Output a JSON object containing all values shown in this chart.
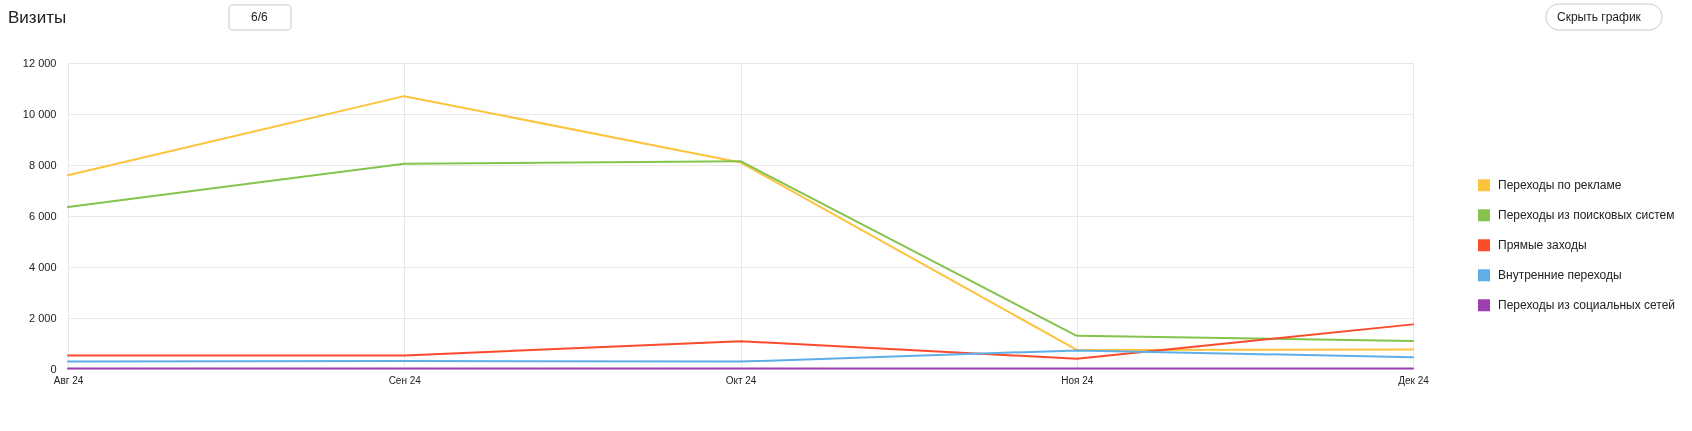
{
  "chart_data": {
    "type": "line",
    "title": "Визиты",
    "annotations": [
      "6/6",
      "Скрыть график"
    ],
    "categories": [
      "Авг 24",
      "Сен 24",
      "Окт 24",
      "Ноя 24",
      "Дек 24"
    ],
    "series": [
      {
        "name": "Переходы по рекламе",
        "color": "#fcc43c",
        "values": [
          7600,
          10700,
          8100,
          750,
          760
        ]
      },
      {
        "name": "Переходы из поисковых систем",
        "color": "#85c34f",
        "values": [
          6350,
          8050,
          8150,
          1300,
          1100
        ]
      },
      {
        "name": "Прямые заходы",
        "color": "#fa4b2a",
        "values": [
          530,
          530,
          1090,
          400,
          1750
        ]
      },
      {
        "name": "Внутренние переходы",
        "color": "#5eaee8",
        "values": [
          290,
          310,
          290,
          730,
          460
        ]
      },
      {
        "name": "Переходы из социальных сетей",
        "color": "#9e3fb0",
        "values": [
          20,
          20,
          20,
          20,
          20
        ]
      }
    ],
    "ylim": [
      0,
      12000
    ],
    "yticks": [
      0,
      {
        "value": 2000,
        "label": "2 000"
      },
      {
        "value": 4000,
        "label": "4 000"
      },
      {
        "value": 6000,
        "label": "6 000"
      },
      {
        "value": 8000,
        "label": "8 000"
      },
      {
        "value": 10000,
        "label": "10 000"
      },
      {
        "value": 12000,
        "label": "12 000"
      }
    ],
    "grid": true,
    "legend": "right",
    "line_style": "solid"
  }
}
